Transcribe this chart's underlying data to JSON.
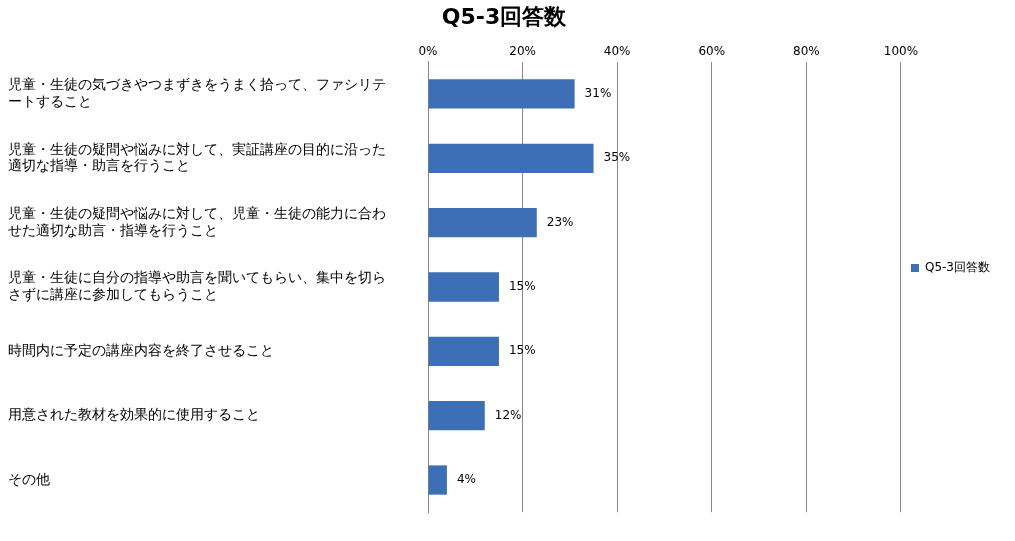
{
  "chart_data": {
    "type": "bar",
    "orientation": "horizontal",
    "title": "Q5-3回答数",
    "categories": [
      "児童・生徒の気づきやつまずきをうまく拾って、ファシリテートすること",
      "児童・生徒の疑問や悩みに対して、実証講座の目的に沿った適切な指導・助言を行うこと",
      "児童・生徒の疑問や悩みに対して、児童・生徒の能力に合わせた適切な助言・指導を行うこと",
      "児童・生徒に自分の指導や助言を聞いてもらい、集中を切らさずに講座に参加してもらうこと",
      "時間内に予定の講座内容を終了させること",
      "用意された教材を効果的に使用すること",
      "その他"
    ],
    "series": [
      {
        "name": "Q5-3回答数",
        "color": "#3c6fb6",
        "values": [
          31,
          35,
          23,
          15,
          15,
          12,
          4
        ],
        "value_labels": [
          "31%",
          "35%",
          "23%",
          "15%",
          "15%",
          "12%",
          "4%"
        ]
      }
    ],
    "xlim": [
      0,
      100
    ],
    "xticks": [
      {
        "value": 0,
        "label": "0%"
      },
      {
        "value": 20,
        "label": "20%"
      },
      {
        "value": 40,
        "label": "40%"
      },
      {
        "value": 60,
        "label": "60%"
      },
      {
        "value": 80,
        "label": "80%"
      },
      {
        "value": 100,
        "label": "100%"
      }
    ],
    "grid": "x",
    "legend": "right"
  }
}
